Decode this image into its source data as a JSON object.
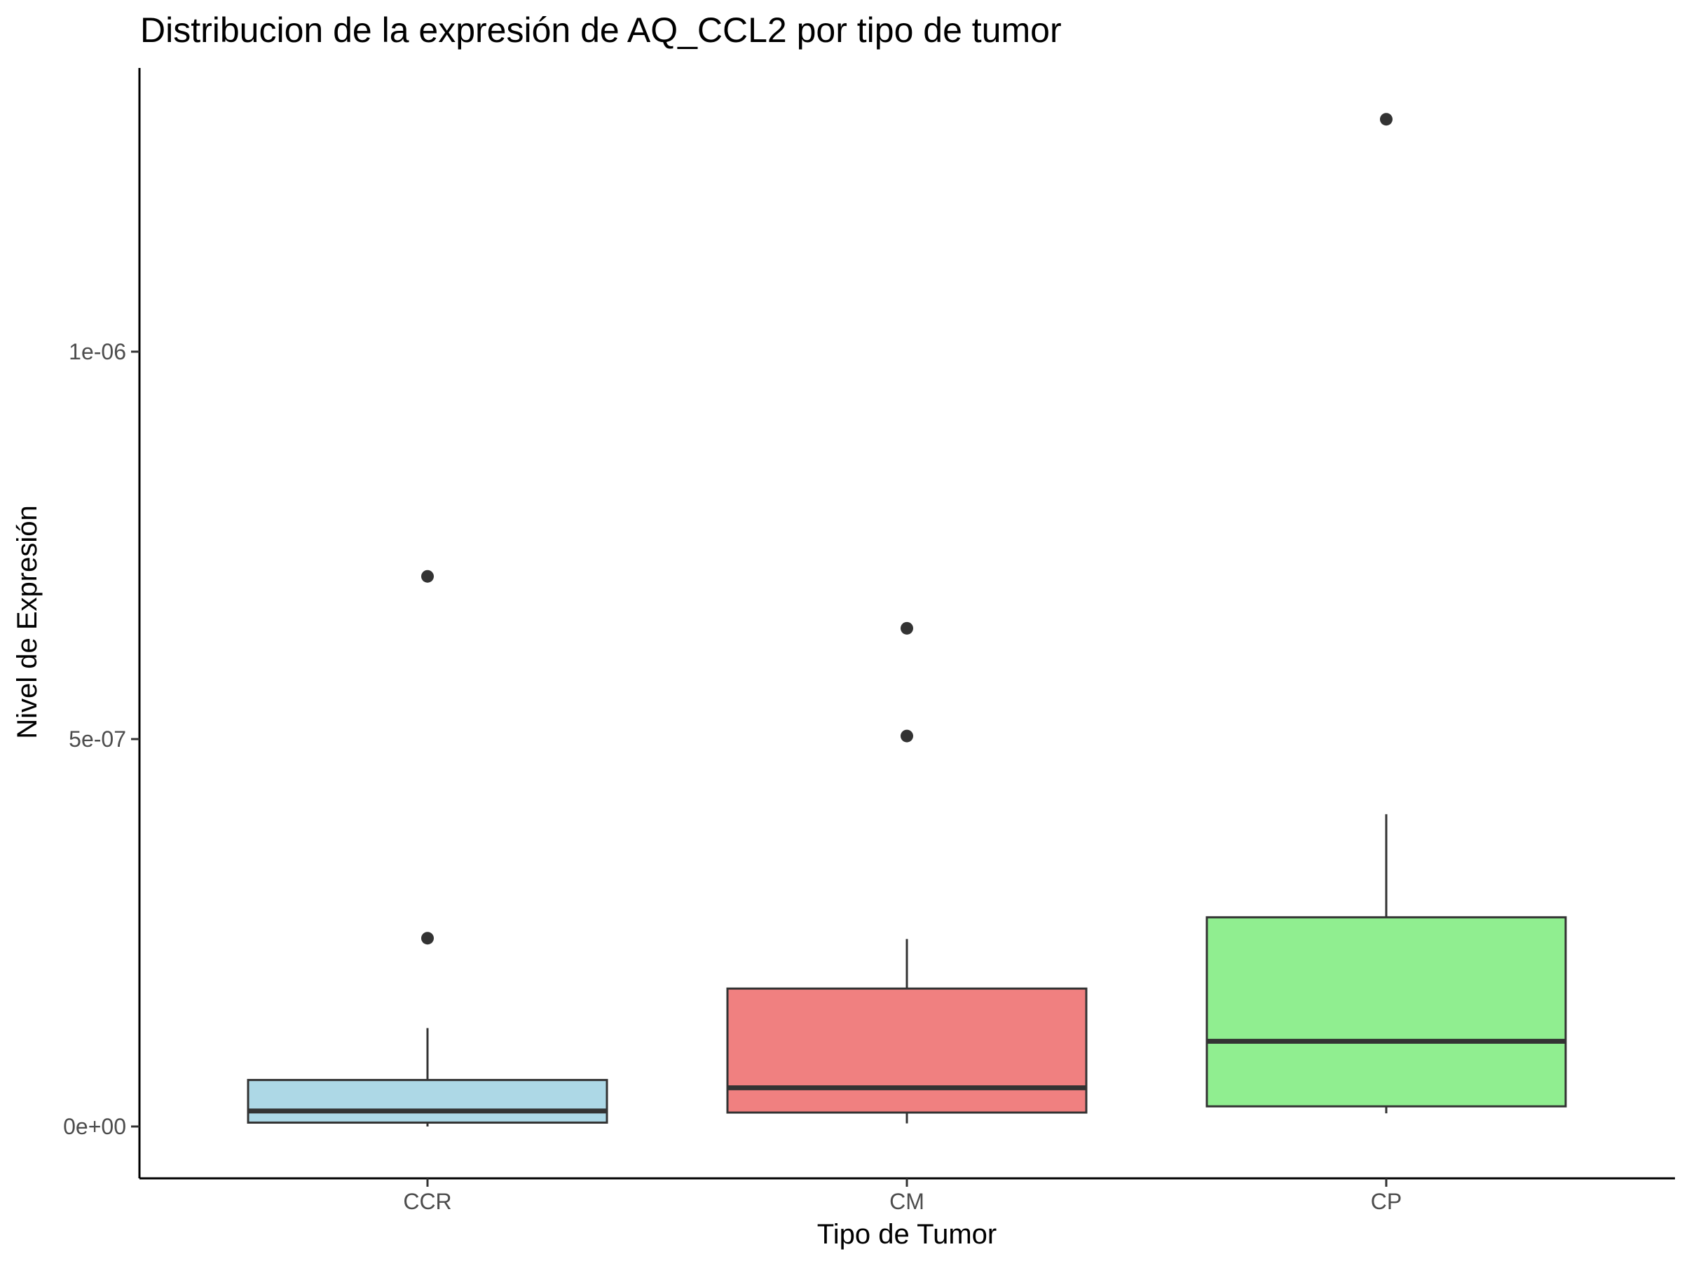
{
  "chart_data": {
    "type": "box",
    "title": "Distribucion de la expresión de AQ_CCL2 por tipo de tumor",
    "xlabel": "Tipo de Tumor",
    "ylabel": "Nivel de Expresión",
    "categories": [
      "CCR",
      "CM",
      "CP"
    ],
    "ylim": [
      -7e-08,
      1.36e-06
    ],
    "yticks": [
      0,
      5e-07,
      1e-06
    ],
    "ytick_labels": [
      "0e+00",
      "5e-07",
      "1e-06"
    ],
    "grid": false,
    "legend": "none",
    "boxes": [
      {
        "category": "CCR",
        "fill": "#add8e6",
        "whisker_low": 0.0,
        "q1": 5e-09,
        "median": 2e-08,
        "q3": 6e-08,
        "whisker_high": 1.27e-07,
        "outliers": [
          2.43e-07,
          7.1e-07
        ]
      },
      {
        "category": "CM",
        "fill": "#f08080",
        "whisker_low": 4e-09,
        "q1": 1.8e-08,
        "median": 5e-08,
        "q3": 1.78e-07,
        "whisker_high": 2.42e-07,
        "outliers": [
          5.04e-07,
          6.43e-07
        ]
      },
      {
        "category": "CP",
        "fill": "#90ee90",
        "whisker_low": 1.7e-08,
        "q1": 2.6e-08,
        "median": 1.1e-07,
        "q3": 2.7e-07,
        "whisker_high": 4.03e-07,
        "outliers": [
          1.3e-06
        ]
      }
    ]
  }
}
